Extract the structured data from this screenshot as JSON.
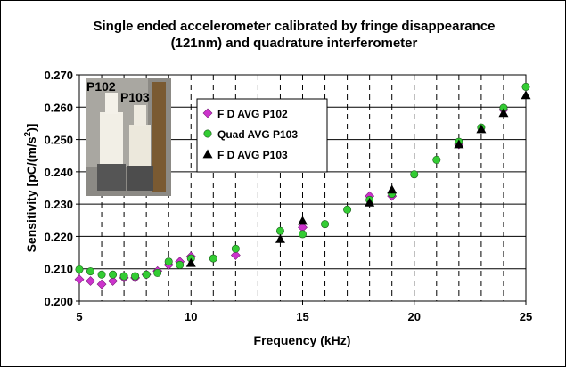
{
  "chart_data": {
    "type": "scatter",
    "title_line1": "Single ended accelerometer calibrated by fringe disappearance",
    "title_line2": "(121nm) and quadrature interferometer",
    "xlabel": "Frequency (kHz)",
    "ylabel": "Sensitivity [pC/(m/s",
    "ylabel_sup": "2",
    "ylabel_end": ")]",
    "xlim": [
      5,
      25
    ],
    "ylim": [
      0.2,
      0.27
    ],
    "x_ticks": [
      5,
      10,
      15,
      20,
      25
    ],
    "y_ticks": [
      "0.200",
      "0.210",
      "0.220",
      "0.230",
      "0.240",
      "0.250",
      "0.260",
      "0.270"
    ],
    "y_tick_values": [
      0.2,
      0.21,
      0.22,
      0.23,
      0.24,
      0.25,
      0.26,
      0.27
    ],
    "grid": "horizontal solid, vertical dashed every 1 kHz",
    "legend_position": "top-left inside plot",
    "series": [
      {
        "name": "F D AVG P102",
        "marker": "diamond",
        "color": "#CC33CC",
        "points": [
          [
            5,
            0.2067
          ],
          [
            5.5,
            0.2062
          ],
          [
            6,
            0.2052
          ],
          [
            6.5,
            0.2062
          ],
          [
            7,
            0.2072
          ],
          [
            7.5,
            0.2072
          ],
          [
            8,
            0.2082
          ],
          [
            8.5,
            0.2093
          ],
          [
            9,
            0.2112
          ],
          [
            9.5,
            0.2122
          ],
          [
            10,
            0.2138
          ],
          [
            12,
            0.2142
          ],
          [
            15,
            0.2228
          ],
          [
            18,
            0.2325
          ],
          [
            19,
            0.2325
          ],
          [
            22,
            0.2485
          ],
          [
            24,
            0.2592
          ]
        ]
      },
      {
        "name": "Quad AVG P103",
        "marker": "circle",
        "color": "#33CC33",
        "points": [
          [
            5,
            0.2098
          ],
          [
            5.5,
            0.2092
          ],
          [
            6,
            0.2082
          ],
          [
            6.5,
            0.2082
          ],
          [
            7,
            0.2077
          ],
          [
            7.5,
            0.2077
          ],
          [
            8,
            0.2082
          ],
          [
            8.5,
            0.2087
          ],
          [
            9,
            0.2122
          ],
          [
            9.5,
            0.2112
          ],
          [
            10,
            0.2132
          ],
          [
            11,
            0.2132
          ],
          [
            12,
            0.2162
          ],
          [
            14,
            0.2217
          ],
          [
            15,
            0.2207
          ],
          [
            16,
            0.2238
          ],
          [
            17,
            0.2283
          ],
          [
            18,
            0.2313
          ],
          [
            19,
            0.2332
          ],
          [
            20,
            0.2392
          ],
          [
            21,
            0.2437
          ],
          [
            22,
            0.2493
          ],
          [
            23,
            0.2537
          ],
          [
            24,
            0.2598
          ],
          [
            25,
            0.2663
          ]
        ]
      },
      {
        "name": "F D AVG P103",
        "marker": "triangle",
        "color": "#000000",
        "points": [
          [
            10,
            0.2118
          ],
          [
            14,
            0.2192
          ],
          [
            15,
            0.2248
          ],
          [
            18,
            0.2305
          ],
          [
            19,
            0.2345
          ],
          [
            22,
            0.2485
          ],
          [
            23,
            0.2532
          ],
          [
            24,
            0.2582
          ],
          [
            25,
            0.2637
          ]
        ]
      }
    ]
  },
  "photo": {
    "label_left": "P102",
    "label_right": "P103"
  }
}
